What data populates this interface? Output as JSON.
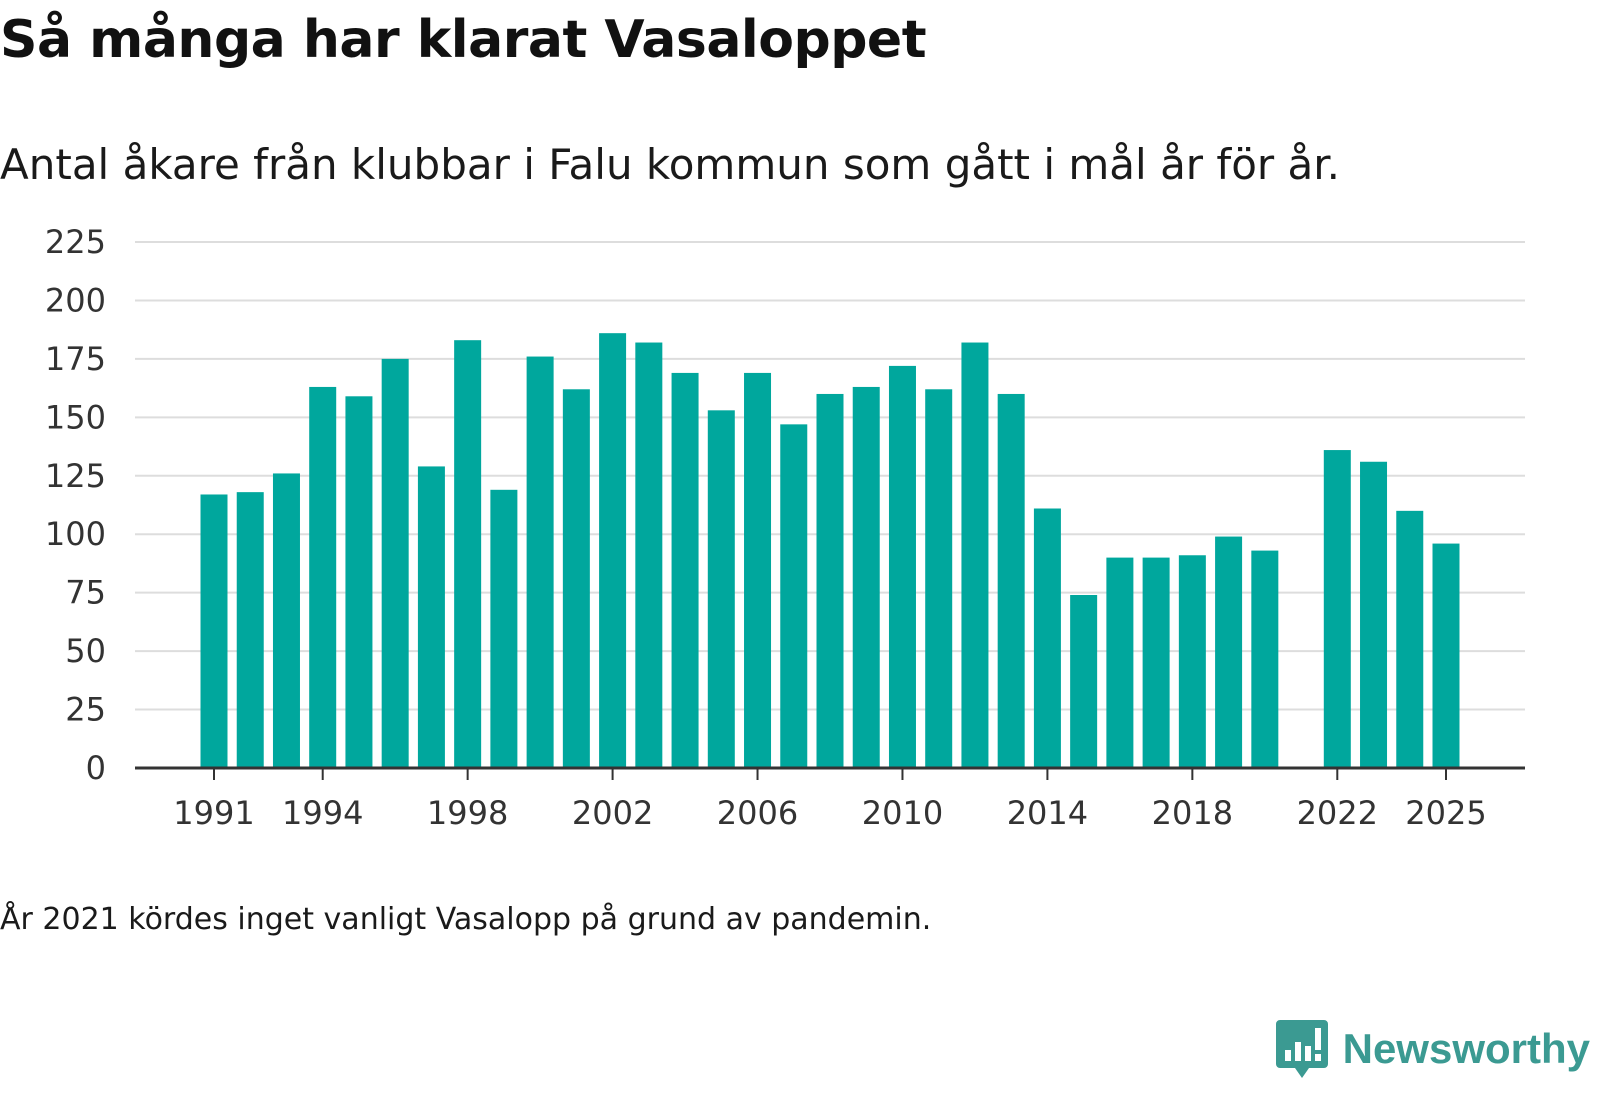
{
  "header": {
    "title": "Så många har klarat Vasaloppet",
    "subtitle": "Antal åkare från klubbar i Falu kommun som gått i mål år för år."
  },
  "footer": {
    "note": "År 2021 kördes inget vanligt Vasalopp på grund av pandemin.",
    "brand": "Newsworthy",
    "brand_icon": "newsworthy-logo-icon"
  },
  "colors": {
    "bar": "#00a79d",
    "gridline": "#dddddd",
    "axis": "#333333",
    "brand": "#3b9a92"
  },
  "chart_data": {
    "type": "bar",
    "title": "Så många har klarat Vasaloppet",
    "subtitle": "Antal åkare från klubbar i Falu kommun som gått i mål år för år.",
    "xlabel": "",
    "ylabel": "",
    "ylim": [
      0,
      225
    ],
    "yticks": [
      0,
      25,
      50,
      75,
      100,
      125,
      150,
      175,
      200,
      225
    ],
    "xticks": [
      1991,
      1994,
      1998,
      2002,
      2006,
      2010,
      2014,
      2018,
      2022,
      2025
    ],
    "xrange": [
      1991,
      2025
    ],
    "grid": true,
    "legend": "none",
    "categories": [
      1991,
      1992,
      1993,
      1994,
      1995,
      1996,
      1997,
      1998,
      1999,
      2000,
      2001,
      2002,
      2003,
      2004,
      2005,
      2006,
      2007,
      2008,
      2009,
      2010,
      2011,
      2012,
      2013,
      2014,
      2015,
      2016,
      2017,
      2018,
      2019,
      2020,
      2022,
      2023,
      2024,
      2025
    ],
    "values": [
      117,
      118,
      126,
      163,
      159,
      175,
      129,
      183,
      119,
      176,
      162,
      186,
      182,
      169,
      153,
      169,
      147,
      160,
      163,
      172,
      162,
      182,
      160,
      111,
      74,
      90,
      90,
      91,
      99,
      93,
      136,
      131,
      110,
      96
    ]
  }
}
